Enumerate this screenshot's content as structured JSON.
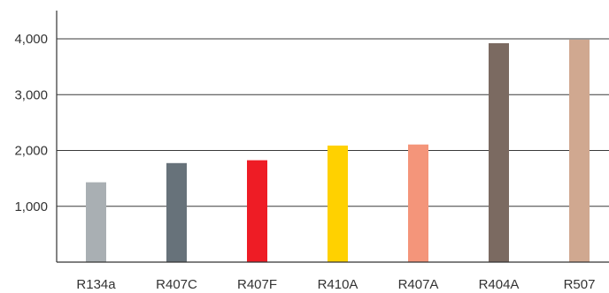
{
  "chart_data": {
    "type": "bar",
    "title": "",
    "xlabel": "",
    "ylabel": "",
    "categories": [
      "R134a",
      "R407C",
      "R407F",
      "R410A",
      "R407A",
      "R404A",
      "R507"
    ],
    "values": [
      1430,
      1774,
      1825,
      2088,
      2107,
      3922,
      3985
    ],
    "colors": [
      "#a9afb3",
      "#67727a",
      "#ee1c25",
      "#ffd100",
      "#f4957a",
      "#7b6a61",
      "#d0a890"
    ],
    "ylim": [
      0,
      4000
    ],
    "yticks": [
      1000,
      2000,
      3000,
      4000
    ],
    "ytick_labels": [
      "1,000",
      "2,000",
      "3,000",
      "4,000"
    ],
    "grid": true,
    "legend": "none"
  }
}
